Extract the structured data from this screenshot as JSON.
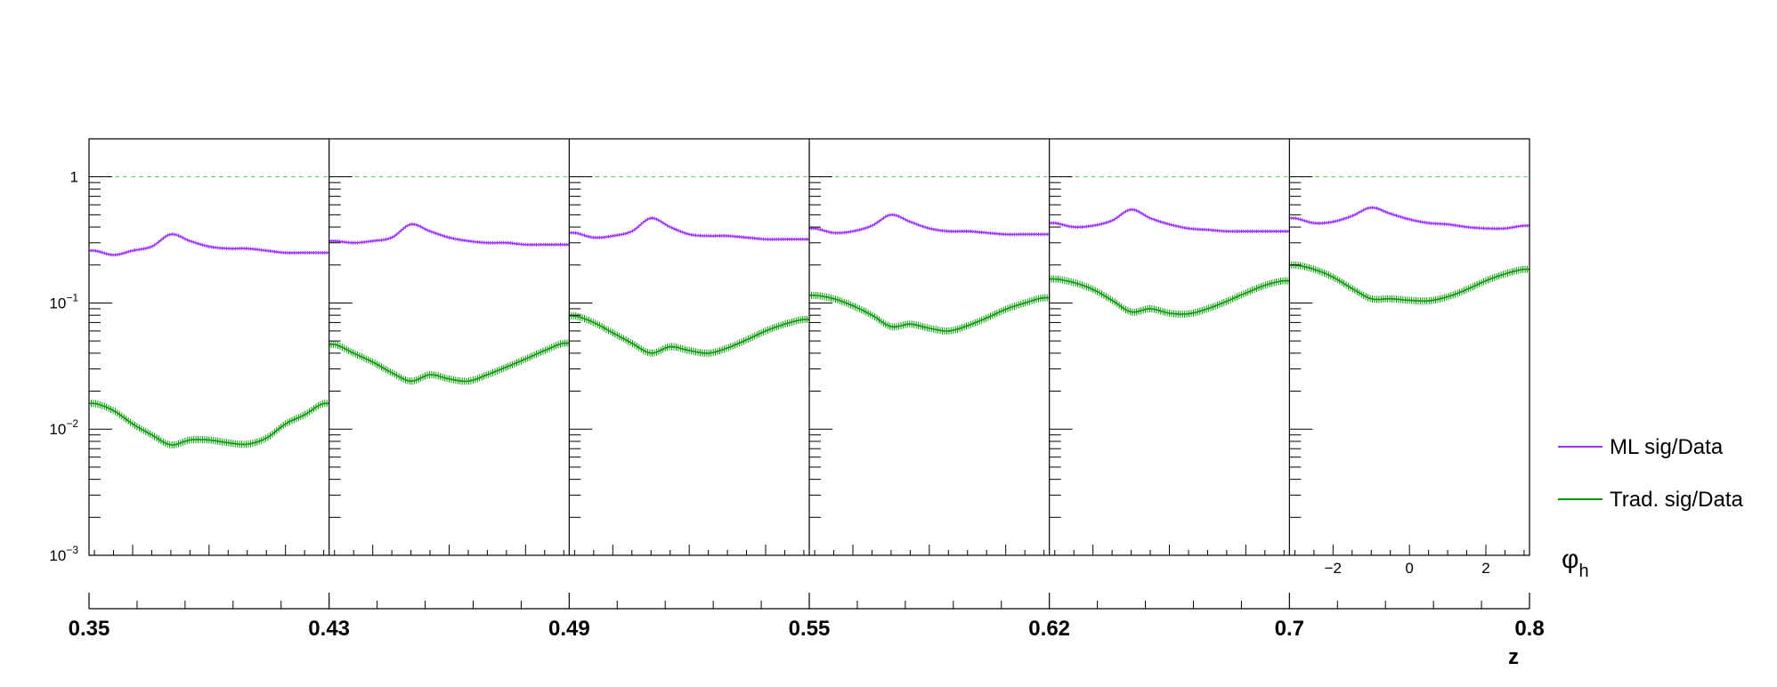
{
  "chart_data": {
    "type": "line",
    "y_axis": {
      "scale": "log",
      "range": [
        0.001,
        2
      ],
      "tick_labels": [
        {
          "value": 1,
          "base": "1",
          "exp": ""
        },
        {
          "value": 0.1,
          "base": "10",
          "exp": "−1"
        },
        {
          "value": 0.01,
          "base": "10",
          "exp": "−2"
        },
        {
          "value": 0.001,
          "base": "10",
          "exp": "−3"
        }
      ],
      "reference_line": 1
    },
    "phi_axis": {
      "label": "φ",
      "label_sub": "h",
      "range": [
        -3.1416,
        3.1416
      ],
      "tick_labels": [
        {
          "value": -2,
          "text": "−2"
        },
        {
          "value": 0,
          "text": "0"
        },
        {
          "value": 2,
          "text": "2"
        }
      ]
    },
    "z_axis": {
      "label": "z",
      "bin_edges": [
        "0.35",
        "0.43",
        "0.49",
        "0.55",
        "0.62",
        "0.7",
        "0.8"
      ]
    },
    "x": [
      -3.0,
      -2.5,
      -2.0,
      -1.5,
      -1.0,
      -0.5,
      0.0,
      0.5,
      1.0,
      1.5,
      2.0,
      2.5,
      3.0
    ],
    "series": [
      {
        "name": "ML sig/Data",
        "color": "#9b30ff",
        "panels": [
          [
            0.26,
            0.24,
            0.26,
            0.28,
            0.35,
            0.31,
            0.28,
            0.27,
            0.27,
            0.26,
            0.25,
            0.25,
            0.25
          ],
          [
            0.31,
            0.3,
            0.31,
            0.33,
            0.42,
            0.37,
            0.33,
            0.31,
            0.3,
            0.3,
            0.29,
            0.29,
            0.29
          ],
          [
            0.36,
            0.33,
            0.34,
            0.37,
            0.47,
            0.4,
            0.35,
            0.34,
            0.34,
            0.33,
            0.32,
            0.32,
            0.32
          ],
          [
            0.39,
            0.36,
            0.37,
            0.41,
            0.5,
            0.44,
            0.39,
            0.37,
            0.37,
            0.36,
            0.35,
            0.35,
            0.35
          ],
          [
            0.43,
            0.4,
            0.41,
            0.45,
            0.55,
            0.47,
            0.42,
            0.39,
            0.38,
            0.37,
            0.37,
            0.37,
            0.37
          ],
          [
            0.47,
            0.43,
            0.44,
            0.49,
            0.57,
            0.51,
            0.46,
            0.43,
            0.42,
            0.4,
            0.39,
            0.39,
            0.41
          ]
        ]
      },
      {
        "name": "Trad. sig/Data",
        "color": "#009900",
        "panels": [
          [
            0.016,
            0.014,
            0.011,
            0.009,
            0.0075,
            0.0082,
            0.0082,
            0.0078,
            0.0076,
            0.0085,
            0.011,
            0.013,
            0.016
          ],
          [
            0.047,
            0.04,
            0.034,
            0.028,
            0.024,
            0.027,
            0.025,
            0.024,
            0.027,
            0.031,
            0.036,
            0.042,
            0.048
          ],
          [
            0.079,
            0.07,
            0.058,
            0.048,
            0.04,
            0.045,
            0.042,
            0.04,
            0.044,
            0.051,
            0.06,
            0.068,
            0.074
          ],
          [
            0.115,
            0.108,
            0.095,
            0.08,
            0.065,
            0.068,
            0.063,
            0.06,
            0.066,
            0.076,
            0.089,
            0.1,
            0.11
          ],
          [
            0.155,
            0.145,
            0.128,
            0.105,
            0.085,
            0.09,
            0.083,
            0.082,
            0.09,
            0.103,
            0.12,
            0.138,
            0.15
          ],
          [
            0.2,
            0.185,
            0.16,
            0.13,
            0.108,
            0.108,
            0.105,
            0.104,
            0.112,
            0.128,
            0.15,
            0.17,
            0.185
          ]
        ]
      }
    ]
  }
}
